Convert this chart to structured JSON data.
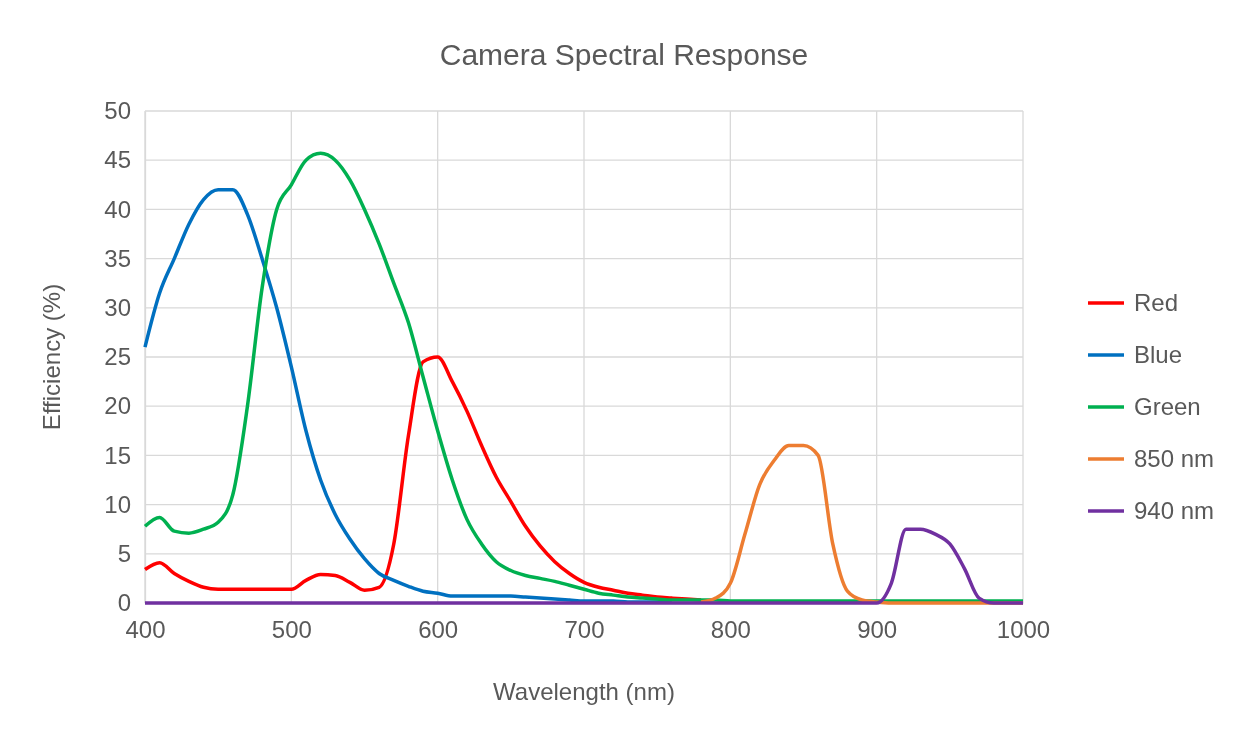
{
  "chart_data": {
    "type": "line",
    "title": "Camera Spectral Response",
    "xlabel": "Wavelength (nm)",
    "ylabel": "Efficiency (%)",
    "x": [
      400,
      410,
      420,
      430,
      440,
      450,
      460,
      470,
      480,
      490,
      500,
      510,
      520,
      530,
      540,
      550,
      560,
      570,
      580,
      590,
      600,
      610,
      620,
      630,
      640,
      650,
      660,
      670,
      680,
      690,
      700,
      710,
      720,
      730,
      740,
      750,
      760,
      770,
      780,
      790,
      800,
      810,
      820,
      830,
      840,
      850,
      860,
      870,
      880,
      890,
      900,
      910,
      920,
      930,
      940,
      950,
      960,
      970,
      980,
      990,
      1000
    ],
    "xlim": [
      400,
      1000
    ],
    "xticks": [
      400,
      500,
      600,
      700,
      800,
      900,
      1000
    ],
    "ylim": [
      0,
      50
    ],
    "yticks": [
      0,
      5,
      10,
      15,
      20,
      25,
      30,
      35,
      40,
      45,
      50
    ],
    "grid": true,
    "legend": "right",
    "line_style": "solid",
    "marker": "none",
    "series": [
      {
        "name": "Red",
        "color": "#ff0000",
        "x": [
          400,
          410,
          420,
          430,
          440,
          450,
          460,
          470,
          480,
          490,
          500,
          510,
          520,
          530,
          540,
          550,
          560,
          570,
          580,
          590,
          600,
          610,
          620,
          630,
          640,
          650,
          660,
          670,
          680,
          690,
          700,
          710,
          720,
          730,
          740,
          750,
          760,
          770,
          780
        ],
        "values": [
          3.4,
          4.1,
          3.0,
          2.2,
          1.6,
          1.4,
          1.4,
          1.4,
          1.4,
          1.4,
          1.4,
          2.3,
          2.9,
          2.8,
          2.1,
          1.3,
          1.6,
          6,
          17,
          24.5,
          25,
          22.5,
          19.5,
          16,
          12.8,
          10.3,
          7.8,
          5.8,
          4.2,
          3,
          2.1,
          1.6,
          1.3,
          1.0,
          0.8,
          0.6,
          0.5,
          0.4,
          0.3
        ]
      },
      {
        "name": "Blue",
        "color": "#0070c0",
        "x": [
          400,
          410,
          420,
          430,
          440,
          450,
          460,
          470,
          480,
          490,
          500,
          510,
          520,
          530,
          540,
          550,
          560,
          570,
          580,
          590,
          600,
          610,
          620,
          630,
          640,
          650,
          660,
          670,
          680,
          690,
          700,
          710,
          720,
          730,
          740,
          750,
          760
        ],
        "values": [
          26,
          31.5,
          35,
          38.5,
          41,
          42,
          42,
          39.5,
          35,
          30,
          24,
          17.5,
          12.5,
          9,
          6.5,
          4.5,
          3,
          2.3,
          1.7,
          1.2,
          1,
          0.7,
          0.7,
          0.7,
          0.7,
          0.7,
          0.6,
          0.5,
          0.4,
          0.3,
          0.2,
          0.2,
          0.2,
          0.1,
          0.1,
          0.1,
          0.1
        ]
      },
      {
        "name": "Green",
        "color": "#00b050",
        "values": [
          7.8,
          8.7,
          7.3,
          7.1,
          7.5,
          8.2,
          11,
          20,
          32,
          40,
          42.5,
          45,
          45.7,
          45,
          43,
          40,
          36.5,
          32.5,
          28.5,
          23,
          17.5,
          12.5,
          8.5,
          6,
          4.2,
          3.3,
          2.8,
          2.5,
          2.2,
          1.8,
          1.4,
          1.0,
          0.8,
          0.6,
          0.5,
          0.4,
          0.3,
          0.3,
          0.3,
          0.3,
          0.2,
          0.2,
          0.2,
          0.2,
          0.2,
          0.2,
          0.2,
          0.2,
          0.2,
          0.2,
          0.2,
          0.2,
          0.2,
          0.2,
          0.2,
          0.2,
          0.2,
          0.2,
          0.2,
          0.2,
          0.2
        ]
      },
      {
        "name": "850 nm",
        "color": "#ed7d31",
        "x": [
          780,
          790,
          800,
          810,
          820,
          830,
          840,
          850,
          860,
          870,
          880,
          890,
          900,
          910,
          920,
          930,
          940,
          950,
          960,
          970,
          980,
          990,
          1000
        ],
        "values": [
          0.1,
          0.5,
          2,
          7,
          12,
          14.5,
          16,
          16,
          15,
          6,
          1.2,
          0.3,
          0.1,
          0,
          0,
          0,
          0,
          0,
          0,
          0,
          0,
          0,
          0
        ]
      },
      {
        "name": "940 nm",
        "color": "#7030a0",
        "values": [
          0,
          0,
          0,
          0,
          0,
          0,
          0,
          0,
          0,
          0,
          0,
          0,
          0,
          0,
          0,
          0,
          0,
          0,
          0,
          0,
          0,
          0,
          0,
          0,
          0,
          0,
          0,
          0,
          0,
          0,
          0,
          0,
          0,
          0,
          0,
          0,
          0,
          0,
          0,
          0,
          0,
          0,
          0,
          0,
          0,
          0,
          0,
          0,
          0,
          0,
          0,
          2,
          7.5,
          7.5,
          7,
          6,
          3.5,
          0.5,
          0,
          0,
          0
        ]
      }
    ]
  }
}
